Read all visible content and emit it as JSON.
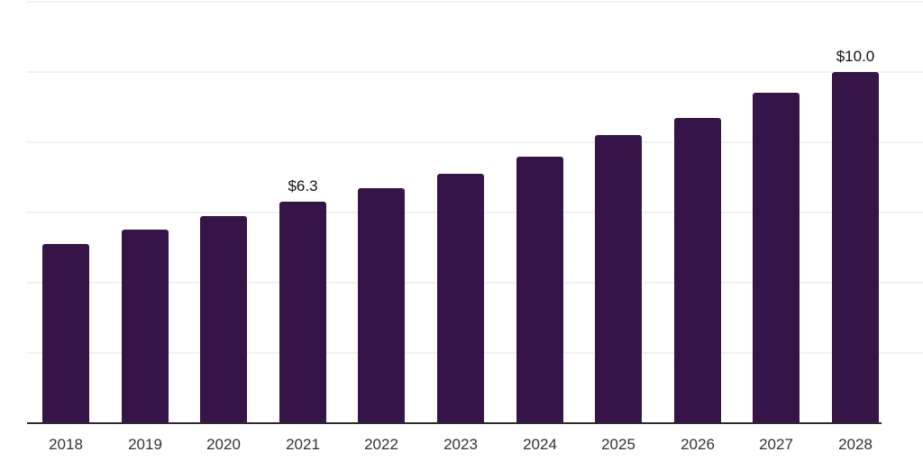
{
  "chart_data": {
    "type": "bar",
    "title": "",
    "xlabel": "",
    "ylabel": "",
    "categories": [
      "2018",
      "2019",
      "2020",
      "2021",
      "2022",
      "2023",
      "2024",
      "2025",
      "2026",
      "2027",
      "2028"
    ],
    "values": [
      5.1,
      5.5,
      5.9,
      6.3,
      6.7,
      7.1,
      7.6,
      8.2,
      8.7,
      9.4,
      10.0
    ],
    "annotations": [
      {
        "index": 3,
        "text": "$6.3"
      },
      {
        "index": 10,
        "text": "$10.0"
      }
    ],
    "ylim": [
      0,
      12
    ],
    "gridline_step": 2,
    "grid": true,
    "legend": false,
    "y_axis_labels_visible": false,
    "colors": {
      "bar": "#371448",
      "axis": "#2b2b2b",
      "gridline": "#f2f2f2",
      "tick_label": "#333333",
      "data_label": "#111111",
      "background": "#ffffff"
    }
  }
}
